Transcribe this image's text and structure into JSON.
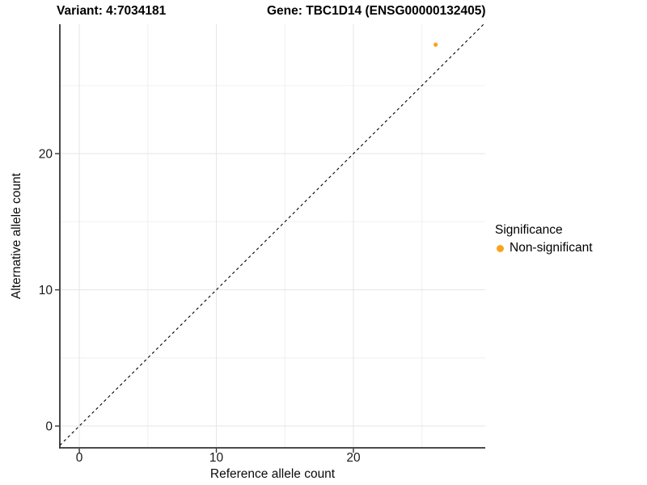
{
  "header": {
    "variant_title": "Variant: 4:7034181",
    "gene_title": "Gene: TBC1D14 (ENSG00000132405)"
  },
  "chart_data": {
    "type": "scatter",
    "title_left": "Variant: 4:7034181",
    "title_right": "Gene: TBC1D14 (ENSG00000132405)",
    "xlabel": "Reference allele count",
    "ylabel": "Alternative allele count",
    "xlim": [
      -1.42,
      29.62
    ],
    "ylim": [
      -1.6,
      29.5
    ],
    "x_ticks": [
      0,
      10,
      20
    ],
    "y_ticks": [
      0,
      10,
      20
    ],
    "grid": true,
    "grid_major": [
      0,
      10,
      20
    ],
    "grid_minor": [
      5,
      15,
      25
    ],
    "reference_line": {
      "kind": "identity",
      "equation": "y = x",
      "style": "dashed",
      "color": "#000000"
    },
    "series": [
      {
        "name": "Non-significant",
        "color": "#FAA41E",
        "points": [
          {
            "x": 26,
            "y": 28
          }
        ],
        "point_radius": 2.6
      }
    ],
    "legend": {
      "title": "Significance",
      "position": "right",
      "items": [
        {
          "label": "Non-significant",
          "color": "#FAA41E"
        }
      ]
    }
  },
  "colors": {
    "background": "#ffffff",
    "axis_line": "#333333",
    "tick_label": "#1a1a1a",
    "grid_major": "#e5e5e5",
    "grid_minor": "#f0f0f0",
    "point": "#FAA41E"
  }
}
